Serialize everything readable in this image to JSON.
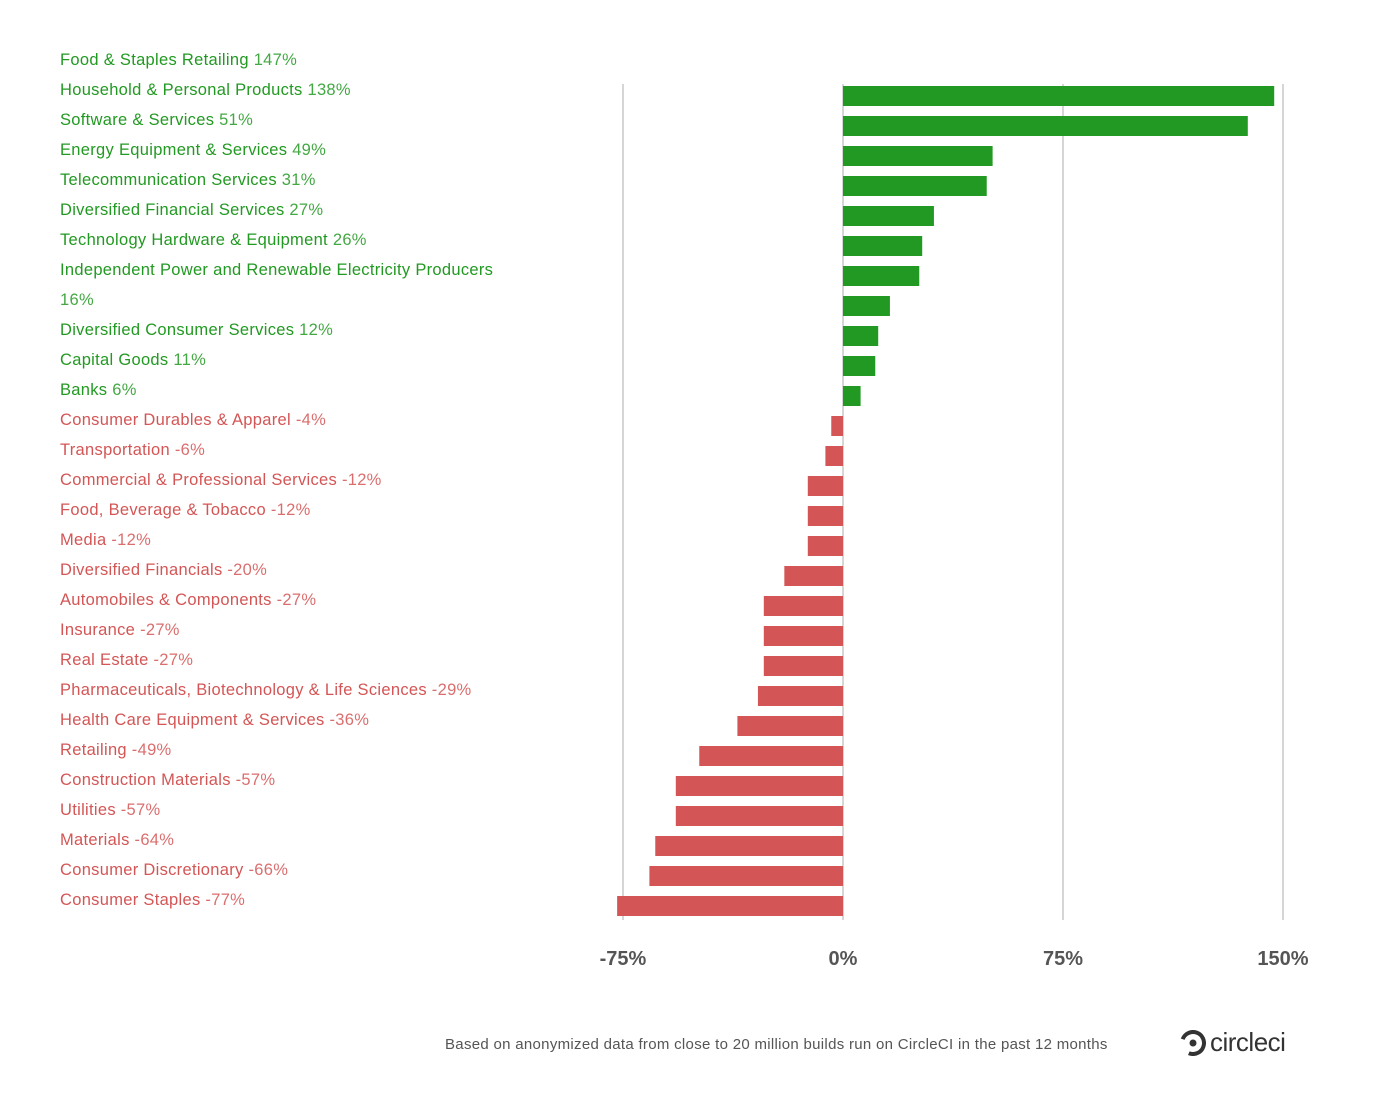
{
  "chart_data": {
    "type": "bar",
    "categories": [
      "Food & Staples Retailing",
      "Household & Personal Products",
      "Software & Services",
      "Energy Equipment & Services",
      "Telecommunication Services",
      "Diversified Financial Services",
      "Technology Hardware & Equipment",
      "Independent Power and Renewable Electricity Producers",
      "Diversified Consumer Services",
      "Capital Goods",
      "Banks",
      "Consumer Durables & Apparel",
      "Transportation",
      "Commercial & Professional Services",
      "Food, Beverage & Tobacco",
      "Media",
      "Diversified Financials",
      "Automobiles & Components",
      "Insurance",
      "Real Estate",
      "Pharmaceuticals, Biotechnology & Life Sciences",
      "Health Care Equipment & Services",
      "Retailing",
      "Construction Materials",
      "Utilities",
      "Materials",
      "Consumer Discretionary",
      "Consumer Staples"
    ],
    "values": [
      147,
      138,
      51,
      49,
      31,
      27,
      26,
      16,
      12,
      11,
      6,
      -4,
      -6,
      -12,
      -12,
      -12,
      -20,
      -27,
      -27,
      -27,
      -29,
      -36,
      -49,
      -57,
      -57,
      -64,
      -66,
      -77
    ],
    "value_labels": [
      "147%",
      "138%",
      "51%",
      "49%",
      "31%",
      "27%",
      "26%",
      "16%",
      "12%",
      "11%",
      "6%",
      "-4%",
      "-6%",
      "-12%",
      "-12%",
      "-12%",
      "-20%",
      "-27%",
      "-27%",
      "-27%",
      "-29%",
      "-36%",
      "-49%",
      "-57%",
      "-57%",
      "-64%",
      "-66%",
      "-77%"
    ],
    "color": "#229922",
    "negative_color": "#d45555",
    "xlim": [
      -75,
      150
    ],
    "xticks": [
      {
        "value": -75,
        "label": "-75%"
      },
      {
        "value": 0,
        "label": "0%"
      },
      {
        "value": 75,
        "label": "75%"
      },
      {
        "value": 150,
        "label": "150%"
      }
    ],
    "grid": true
  },
  "footnote": "Based on anonymized data from close to 20 million builds run on CircleCI in the past 12 months",
  "logo": "circleci"
}
